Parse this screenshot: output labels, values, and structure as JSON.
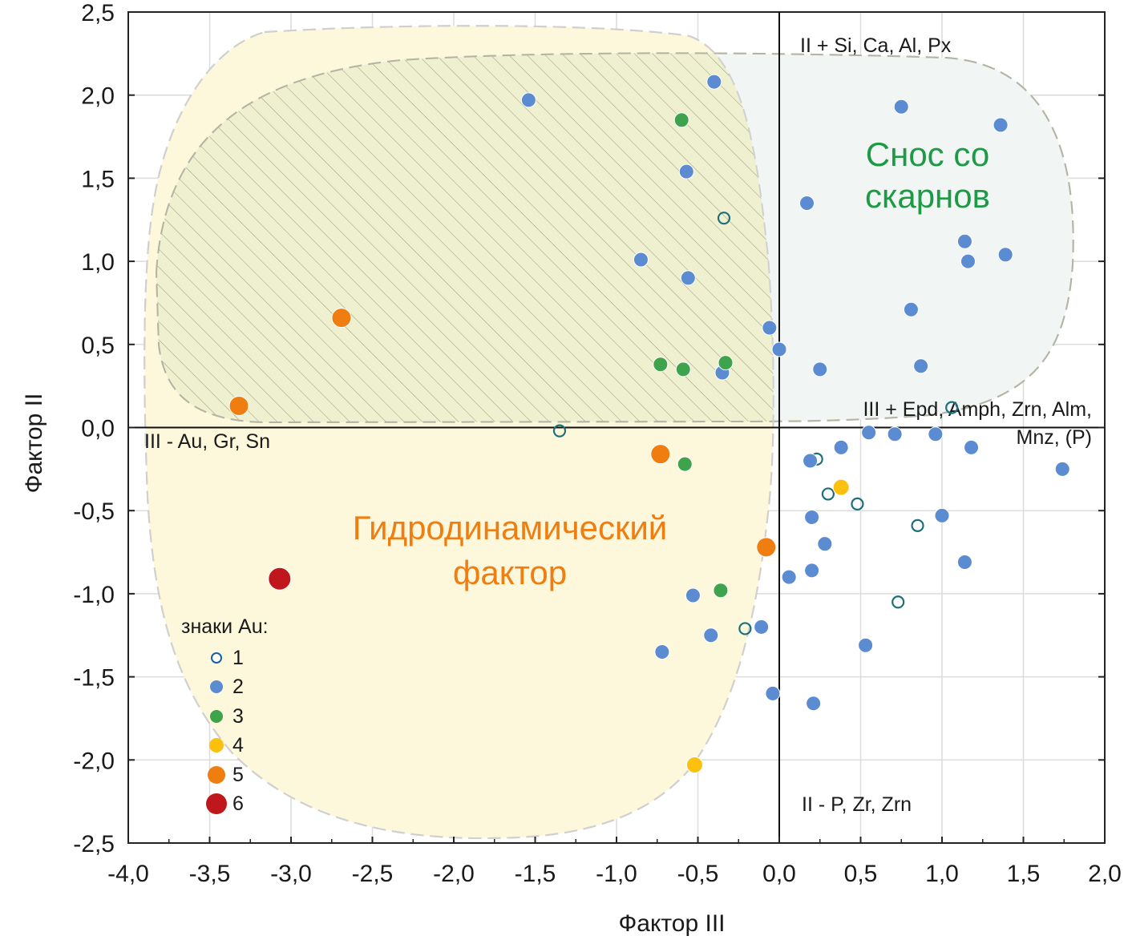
{
  "chart_data": {
    "type": "scatter",
    "xlabel": "Фактор III",
    "ylabel": "Фактор II",
    "xlim": [
      -4.0,
      2.0
    ],
    "ylim": [
      -2.5,
      2.5
    ],
    "grid": true,
    "x_ticks": [
      "-4,0",
      "-3,5",
      "-3,0",
      "-2,5",
      "-2,0",
      "-1,5",
      "-1,0",
      "-0,5",
      "0,0",
      "0,5",
      "1,0",
      "1,5",
      "2,0"
    ],
    "y_ticks": [
      "2,5",
      "2,0",
      "1,5",
      "1,0",
      "0,5",
      "0,0",
      "-0,5",
      "-1,0",
      "-1,5",
      "-2,0",
      "-2,5"
    ],
    "legend": {
      "title": "знаки Au:",
      "placement": "bottom-left"
    },
    "series": [
      {
        "name": "1",
        "marker": "open-circle",
        "color": "#1f6f7a",
        "points": [
          [
            -0.34,
            1.26
          ],
          [
            -1.35,
            -0.02
          ],
          [
            0.23,
            -0.19
          ],
          [
            0.3,
            -0.4
          ],
          [
            0.48,
            -0.46
          ],
          [
            0.85,
            -0.59
          ],
          [
            0.73,
            -1.05
          ],
          [
            -0.21,
            -1.21
          ],
          [
            1.06,
            0.12
          ]
        ]
      },
      {
        "name": "2",
        "marker": "filled-circle",
        "color": "#5b8bd0",
        "points": [
          [
            -1.54,
            1.97
          ],
          [
            -0.4,
            2.08
          ],
          [
            -0.57,
            1.54
          ],
          [
            -0.85,
            1.01
          ],
          [
            -0.56,
            0.9
          ],
          [
            -0.06,
            0.6
          ],
          [
            0.0,
            0.47
          ],
          [
            -0.35,
            0.33
          ],
          [
            0.75,
            1.93
          ],
          [
            1.36,
            1.82
          ],
          [
            0.17,
            1.35
          ],
          [
            1.14,
            1.12
          ],
          [
            1.16,
            1.0
          ],
          [
            1.39,
            1.04
          ],
          [
            0.81,
            0.71
          ],
          [
            0.87,
            0.37
          ],
          [
            0.25,
            0.35
          ],
          [
            0.55,
            -0.03
          ],
          [
            0.71,
            -0.04
          ],
          [
            0.96,
            -0.04
          ],
          [
            1.18,
            -0.12
          ],
          [
            0.38,
            -0.12
          ],
          [
            0.19,
            -0.2
          ],
          [
            1.74,
            -0.25
          ],
          [
            0.2,
            -0.54
          ],
          [
            1.0,
            -0.53
          ],
          [
            0.28,
            -0.7
          ],
          [
            0.06,
            -0.9
          ],
          [
            0.2,
            -0.86
          ],
          [
            1.14,
            -0.81
          ],
          [
            -0.53,
            -1.01
          ],
          [
            -0.11,
            -1.2
          ],
          [
            -0.42,
            -1.25
          ],
          [
            -0.72,
            -1.35
          ],
          [
            0.53,
            -1.31
          ],
          [
            -0.04,
            -1.6
          ],
          [
            0.21,
            -1.66
          ]
        ]
      },
      {
        "name": "3",
        "marker": "filled-circle",
        "color": "#3fa34d",
        "points": [
          [
            -0.6,
            1.85
          ],
          [
            -0.73,
            0.38
          ],
          [
            -0.59,
            0.35
          ],
          [
            -0.33,
            0.39
          ],
          [
            -0.58,
            -0.22
          ],
          [
            -0.36,
            -0.98
          ]
        ]
      },
      {
        "name": "4",
        "marker": "filled-circle",
        "color": "#fcc10e",
        "points": [
          [
            0.38,
            -0.36
          ],
          [
            -0.52,
            -2.03
          ]
        ]
      },
      {
        "name": "5",
        "marker": "filled-circle",
        "color": "#ef7d10",
        "points": [
          [
            -2.69,
            0.66
          ],
          [
            -3.32,
            0.13
          ],
          [
            -0.73,
            -0.16
          ],
          [
            -0.08,
            -0.72
          ]
        ]
      },
      {
        "name": "6",
        "marker": "filled-circle",
        "color": "#c0171c",
        "points": [
          [
            -3.07,
            -0.91
          ]
        ]
      }
    ],
    "annotations": {
      "top": "II +  Si, Ca, Al, Px",
      "bottom": "II -  P, Zr, Zrn",
      "left": "III -  Au, Gr, Sn",
      "right_line1": "III +  Epd, Amph, Zrn, Alm,",
      "right_line2": "Mnz, (P)"
    },
    "regions": [
      {
        "label_line1": "Снос со",
        "label_line2": "скарнов",
        "color": "#1e9a46",
        "fill": "#f1f5f4"
      },
      {
        "label_line1": "Гидродинамический",
        "label_line2": "фактор",
        "color": "#ef7d10",
        "fill": "#fdf7dc"
      }
    ]
  }
}
